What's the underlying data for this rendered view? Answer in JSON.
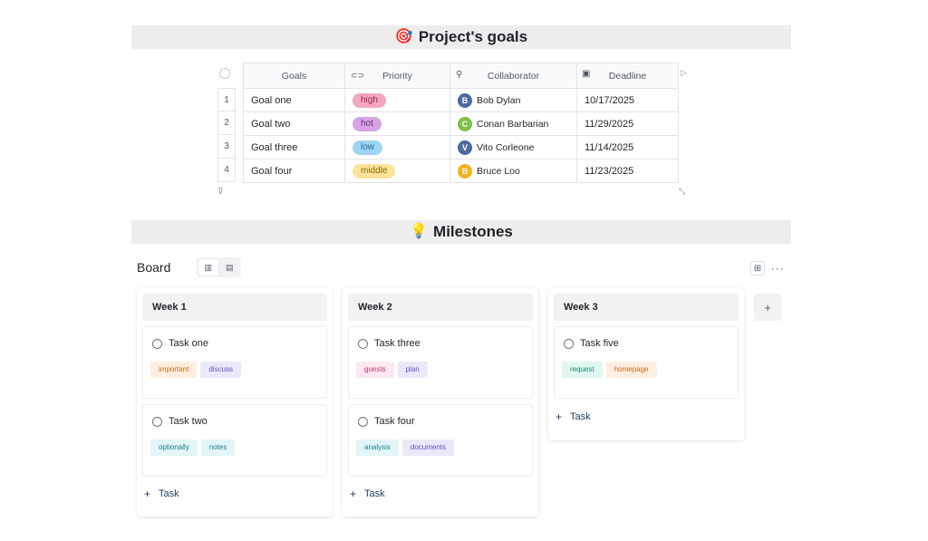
{
  "goals_section": {
    "icon": "🎯",
    "title": "Project's goals"
  },
  "goals_table": {
    "columns": [
      {
        "label": "Goals",
        "icon": ""
      },
      {
        "label": "Priority",
        "icon": "tag-icon"
      },
      {
        "label": "Collaborator",
        "icon": "person-icon"
      },
      {
        "label": "Deadline",
        "icon": "calendar-icon"
      }
    ],
    "rows": [
      {
        "num": "1",
        "goal": "Goal one",
        "priority": "high",
        "priority_bg": "#f4a6c0",
        "priority_fg": "#9b2451",
        "collaborator": "Bob Dylan",
        "initial": "B",
        "avatar_color": "#4a6aa0",
        "deadline": "10/17/2025"
      },
      {
        "num": "2",
        "goal": "Goal two",
        "priority": "hot",
        "priority_bg": "#d6a3e3",
        "priority_fg": "#6d2a82",
        "collaborator": "Conan Barbarian",
        "initial": "C",
        "avatar_color": "#7fbf4a",
        "deadline": "11/29/2025"
      },
      {
        "num": "3",
        "goal": "Goal three",
        "priority": "low",
        "priority_bg": "#9dd5f2",
        "priority_fg": "#1f6d93",
        "collaborator": "Vito Corleone",
        "initial": "V",
        "avatar_color": "#4a6aa0",
        "deadline": "11/14/2025"
      },
      {
        "num": "4",
        "goal": "Goal four",
        "priority": "middle",
        "priority_bg": "#fbe39a",
        "priority_fg": "#8a6a06",
        "collaborator": "Bruce Loo",
        "initial": "B",
        "avatar_color": "#f4b21c",
        "deadline": "11/23/2025"
      }
    ]
  },
  "milestones_section": {
    "icon": "💡",
    "title": "Milestones"
  },
  "board": {
    "title": "Board",
    "add_task_label": "Task",
    "columns": [
      {
        "title": "Week 1",
        "cards": [
          {
            "title": "Task one",
            "tags": [
              {
                "label": "important",
                "bg": "#fdeee1",
                "fg": "#d4661a"
              },
              {
                "label": "discuss",
                "bg": "#ece8fb",
                "fg": "#6a4bc9"
              }
            ]
          },
          {
            "title": "Task two",
            "tags": [
              {
                "label": "optionally",
                "bg": "#e3f5f7",
                "fg": "#1d7f8c"
              },
              {
                "label": "notes",
                "bg": "#e3f5f7",
                "fg": "#1d7f8c"
              }
            ]
          }
        ]
      },
      {
        "title": "Week 2",
        "cards": [
          {
            "title": "Task three",
            "tags": [
              {
                "label": "guests",
                "bg": "#fde8f0",
                "fg": "#c7336f"
              },
              {
                "label": "plan",
                "bg": "#ece8fb",
                "fg": "#6a4bc9"
              }
            ]
          },
          {
            "title": "Task four",
            "tags": [
              {
                "label": "analysis",
                "bg": "#e3f5f7",
                "fg": "#1d7f8c"
              },
              {
                "label": "documents",
                "bg": "#ece8fb",
                "fg": "#6a4bc9"
              }
            ]
          }
        ]
      },
      {
        "title": "Week 3",
        "cards": [
          {
            "title": "Task five",
            "tags": [
              {
                "label": "request",
                "bg": "#e2f6f1",
                "fg": "#1a8a6c"
              },
              {
                "label": "homepage",
                "bg": "#fdeee1",
                "fg": "#d4661a"
              }
            ]
          }
        ]
      }
    ]
  }
}
